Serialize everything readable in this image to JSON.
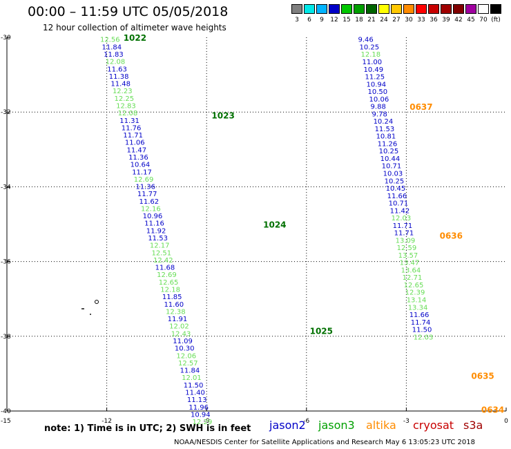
{
  "header": {
    "title": "00:00 – 11:59 UTC 05/05/2018",
    "subtitle": "12 hour collection of altimeter wave heights"
  },
  "scale": {
    "colors": [
      "#808080",
      "#00e8e8",
      "#00b4ff",
      "#0000c8",
      "#00c800",
      "#00a000",
      "#006400",
      "#ffff00",
      "#ffc800",
      "#ff8c00",
      "#ff0000",
      "#c80000",
      "#a00000",
      "#800000",
      "#a000a0",
      "#ffffff",
      "#000000"
    ],
    "labels": [
      "3",
      "6",
      "9",
      "12",
      "15",
      "18",
      "21",
      "24",
      "27",
      "30",
      "33",
      "36",
      "39",
      "42",
      "45",
      "70",
      "(ft)"
    ]
  },
  "axes": {
    "y_ticks": [
      "-30",
      "-32",
      "-34",
      "-36",
      "-38",
      "-40"
    ],
    "y_values": [
      -30,
      -32,
      -34,
      -36,
      -38,
      -40
    ],
    "y_corner": "-15",
    "x_ticks": [
      "-12",
      "-9",
      "-6",
      "-3",
      "0"
    ],
    "x_values": [
      -12,
      -9,
      -6,
      -3,
      0
    ]
  },
  "colors": {
    "jason2": "#0000c8",
    "jason3": "#00a000",
    "altika": "#ff8c00",
    "jason3_light": "#66dd55",
    "label_green": "#007000"
  },
  "tracks": [
    {
      "name": "track-west",
      "lon": -12.2,
      "lat": -30.05,
      "dlon": 0.0533,
      "dlat": -0.1967,
      "values": [
        "12.56",
        "11.84",
        "11.83",
        "12.08",
        "11.63",
        "11.38",
        "11.48",
        "12.23",
        "12.25",
        "12.83",
        "12.08",
        "11.31",
        "11.76",
        "11.71",
        "11.06",
        "11.47",
        "11.36",
        "10.64",
        "11.17",
        "12.69",
        "11.36",
        "11.77",
        "11.62",
        "12.16",
        "10.96",
        "11.16",
        "11.92",
        "11.53",
        "12.17",
        "12.51",
        "12.42",
        "11.68",
        "12.69",
        "12.65",
        "12.18",
        "11.85",
        "11.60",
        "12.38",
        "11.91",
        "12.02",
        "12.43",
        "11.09",
        "10.30",
        "12.06",
        "12.57",
        "11.84",
        "12.01",
        "11.50",
        "11.40",
        "11.13",
        "11.96",
        "10.94",
        "12.29"
      ],
      "sat": [
        "j3",
        "j2",
        "j2",
        "j3",
        "j2",
        "j2",
        "j2",
        "j3",
        "j3",
        "j3",
        "j3",
        "j2",
        "j2",
        "j2",
        "j2",
        "j2",
        "j2",
        "j2",
        "j2",
        "j3",
        "j2",
        "j2",
        "j2",
        "j3",
        "j2",
        "j2",
        "j2",
        "j2",
        "j3",
        "j3",
        "j3",
        "j2",
        "j3",
        "j3",
        "j3",
        "j2",
        "j2",
        "j3",
        "j2",
        "j3",
        "j3",
        "j2",
        "j2",
        "j3",
        "j3",
        "j2",
        "j3",
        "j2",
        "j2",
        "j2",
        "j2",
        "j2",
        "j3"
      ]
    },
    {
      "name": "track-east",
      "lon": -4.45,
      "lat": -30.05,
      "dlon": 0.0416,
      "dlat": -0.199,
      "values": [
        "9.46",
        "10.25",
        "12.18",
        "11.00",
        "10.49",
        "11.25",
        "10.94",
        "10.50",
        "10.06",
        "9.88",
        "9.78",
        "10.24",
        "11.53",
        "10.81",
        "11.26",
        "10.25",
        "10.44",
        "10.71",
        "10.03",
        "10.25",
        "10.45",
        "11.66",
        "10.71",
        "11.42",
        "12.03",
        "11.71",
        "11.71",
        "13.09",
        "12.59",
        "13.57",
        "13.47",
        "13.64",
        "12.71",
        "12.65",
        "12.39",
        "13.14",
        "13.34",
        "11.66",
        "11.74",
        "11.50",
        "12.03"
      ],
      "sat": [
        "j2",
        "j2",
        "j3",
        "j2",
        "j2",
        "j2",
        "j2",
        "j2",
        "j2",
        "j2",
        "j2",
        "j2",
        "j2",
        "j2",
        "j2",
        "j2",
        "j2",
        "j2",
        "j2",
        "j2",
        "j2",
        "j2",
        "j2",
        "j2",
        "j3",
        "j2",
        "j2",
        "j3",
        "j3",
        "j3",
        "j3",
        "j3",
        "j3",
        "j3",
        "j3",
        "j3",
        "j3",
        "j2",
        "j2",
        "j2",
        "j3"
      ]
    }
  ],
  "time_labels": [
    {
      "text": "1022",
      "lon": -11.5,
      "lat": -30.0,
      "sat": "jason3"
    },
    {
      "text": "1023",
      "lon": -8.85,
      "lat": -32.08,
      "sat": "jason3"
    },
    {
      "text": "1024",
      "lon": -7.3,
      "lat": -35.0,
      "sat": "jason3"
    },
    {
      "text": "1025",
      "lon": -5.9,
      "lat": -37.85,
      "sat": "jason3"
    },
    {
      "text": "0637",
      "lon": -2.9,
      "lat": -31.85,
      "sat": "altika"
    },
    {
      "text": "0636",
      "lon": -2.0,
      "lat": -35.3,
      "sat": "altika"
    },
    {
      "text": "0635",
      "lon": -1.05,
      "lat": -39.05,
      "sat": "altika"
    },
    {
      "text": "0634",
      "lon": -0.75,
      "lat": -39.95,
      "sat": "altika"
    }
  ],
  "note": "note:  1) Time is in UTC;  2) SWH is in feet",
  "legend": [
    {
      "label": "jason2",
      "color": "#0000c8"
    },
    {
      "label": "jason3",
      "color": "#00a000"
    },
    {
      "label": "altika",
      "color": "#ff8c00"
    },
    {
      "label": "cryosat",
      "color": "#c80000"
    },
    {
      "label": "s3a",
      "color": "#a00000"
    }
  ],
  "credit": "NOAA/NESDIS Center for Satellite Applications and Research    May  6 13:05:23 UTC 2018"
}
